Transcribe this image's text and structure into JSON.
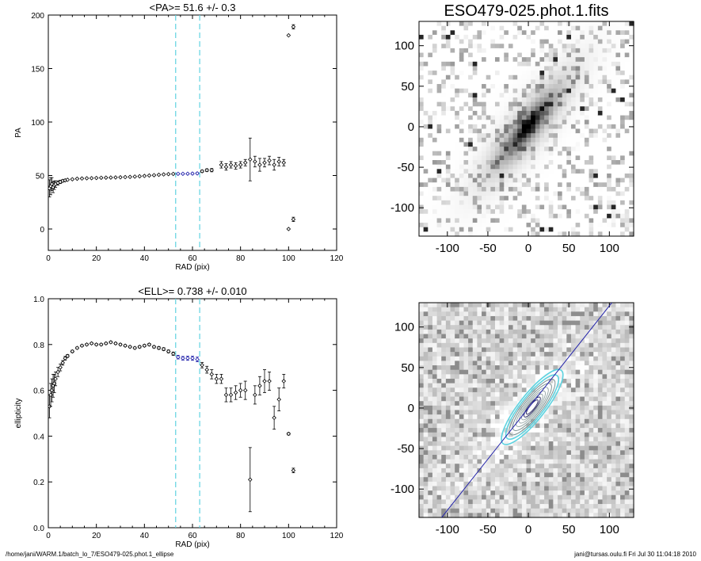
{
  "footer": {
    "left": "/home/jani/WARM.1/batch_lo_7/ESO479-025.phot.1_ellipse",
    "right": "jani@tursas.oulu.fi  Fri Jul 30 11:04:18 2010"
  },
  "chart_data": [
    {
      "id": "pa",
      "type": "scatter",
      "title": "<PA>=  51.6 +/-   0.3",
      "xlabel": "RAD (pix)",
      "ylabel": "PA",
      "xlim": [
        0,
        120
      ],
      "ylim": [
        -20,
        200
      ],
      "xticks": [
        0,
        20,
        40,
        60,
        80,
        100,
        120
      ],
      "yticks": [
        0,
        50,
        100,
        150,
        200
      ],
      "vlines": [
        53,
        63
      ],
      "vline_color": "#5fd3e0",
      "fit_color": "#1a1aa8",
      "fit_x_range": [
        53,
        63
      ],
      "points": [
        {
          "x": 0.5,
          "y": 38,
          "e": 8
        },
        {
          "x": 1,
          "y": 40,
          "e": 8
        },
        {
          "x": 1.5,
          "y": 42,
          "e": 6
        },
        {
          "x": 2,
          "y": 39,
          "e": 5
        },
        {
          "x": 2.5,
          "y": 41,
          "e": 4
        },
        {
          "x": 3,
          "y": 42,
          "e": 3
        },
        {
          "x": 4,
          "y": 43,
          "e": 2
        },
        {
          "x": 5,
          "y": 44,
          "e": 1.5
        },
        {
          "x": 6,
          "y": 45,
          "e": 1
        },
        {
          "x": 7,
          "y": 45.5,
          "e": 0.8
        },
        {
          "x": 8,
          "y": 46,
          "e": 0.6
        },
        {
          "x": 10,
          "y": 46.5,
          "e": 0.5
        },
        {
          "x": 12,
          "y": 47,
          "e": 0.5
        },
        {
          "x": 14,
          "y": 47.2,
          "e": 0.4
        },
        {
          "x": 16,
          "y": 47.4,
          "e": 0.4
        },
        {
          "x": 18,
          "y": 47.5,
          "e": 0.4
        },
        {
          "x": 20,
          "y": 47.7,
          "e": 0.4
        },
        {
          "x": 22,
          "y": 47.9,
          "e": 0.4
        },
        {
          "x": 24,
          "y": 48,
          "e": 0.4
        },
        {
          "x": 26,
          "y": 48.1,
          "e": 0.4
        },
        {
          "x": 28,
          "y": 48.2,
          "e": 0.4
        },
        {
          "x": 30,
          "y": 48.3,
          "e": 0.4
        },
        {
          "x": 32,
          "y": 48.5,
          "e": 0.4
        },
        {
          "x": 34,
          "y": 48.7,
          "e": 0.4
        },
        {
          "x": 36,
          "y": 49,
          "e": 0.4
        },
        {
          "x": 38,
          "y": 49.3,
          "e": 0.4
        },
        {
          "x": 40,
          "y": 49.6,
          "e": 0.5
        },
        {
          "x": 42,
          "y": 50,
          "e": 0.5
        },
        {
          "x": 44,
          "y": 50.3,
          "e": 0.5
        },
        {
          "x": 46,
          "y": 50.7,
          "e": 0.5
        },
        {
          "x": 48,
          "y": 51,
          "e": 0.5
        },
        {
          "x": 50,
          "y": 51.3,
          "e": 0.5
        },
        {
          "x": 52,
          "y": 51.5,
          "e": 0.5
        },
        {
          "x": 54,
          "y": 51.6,
          "e": 0.6
        },
        {
          "x": 56,
          "y": 51.6,
          "e": 0.6
        },
        {
          "x": 58,
          "y": 51.7,
          "e": 0.6
        },
        {
          "x": 60,
          "y": 51.8,
          "e": 0.7
        },
        {
          "x": 62,
          "y": 52,
          "e": 0.7
        },
        {
          "x": 64,
          "y": 54,
          "e": 1
        },
        {
          "x": 66,
          "y": 55,
          "e": 1.2
        },
        {
          "x": 68,
          "y": 55,
          "e": 1.5
        },
        {
          "x": 72,
          "y": 60,
          "e": 3
        },
        {
          "x": 74,
          "y": 58,
          "e": 3
        },
        {
          "x": 76,
          "y": 60,
          "e": 3
        },
        {
          "x": 78,
          "y": 59,
          "e": 3
        },
        {
          "x": 80,
          "y": 60,
          "e": 3
        },
        {
          "x": 82,
          "y": 62,
          "e": 3
        },
        {
          "x": 84,
          "y": 65,
          "e": 20
        },
        {
          "x": 86,
          "y": 63,
          "e": 5
        },
        {
          "x": 88,
          "y": 60,
          "e": 6
        },
        {
          "x": 90,
          "y": 62,
          "e": 4
        },
        {
          "x": 92,
          "y": 64,
          "e": 4
        },
        {
          "x": 94,
          "y": 60,
          "e": 5
        },
        {
          "x": 96,
          "y": 63,
          "e": 4
        },
        {
          "x": 98,
          "y": 62,
          "e": 3
        },
        {
          "x": 100,
          "y": 181,
          "e": 0
        },
        {
          "x": 100,
          "y": 0,
          "e": 0
        },
        {
          "x": 102,
          "y": 189,
          "e": 2
        },
        {
          "x": 102,
          "y": 9,
          "e": 2
        }
      ]
    },
    {
      "id": "ell",
      "type": "scatter",
      "title": "<ELL>= 0.738 +/-  0.010",
      "xlabel": "RAD (pix)",
      "ylabel": "ellipticity",
      "xlim": [
        0,
        120
      ],
      "ylim": [
        0,
        1
      ],
      "xticks": [
        0,
        20,
        40,
        60,
        80,
        100,
        120
      ],
      "yticks": [
        0.0,
        0.2,
        0.4,
        0.6,
        0.8,
        1.0
      ],
      "ytick_labels": [
        "0.0",
        "0.2",
        "0.4",
        "0.6",
        "0.8",
        "1.0"
      ],
      "vlines": [
        53,
        63
      ],
      "vline_color": "#5fd3e0",
      "fit_color": "#1a1aa8",
      "fit_x_range": [
        53,
        63
      ],
      "points": [
        {
          "x": 0.5,
          "y": 0.53,
          "e": 0.05
        },
        {
          "x": 1,
          "y": 0.58,
          "e": 0.05
        },
        {
          "x": 1.5,
          "y": 0.6,
          "e": 0.05
        },
        {
          "x": 2,
          "y": 0.62,
          "e": 0.05
        },
        {
          "x": 2.5,
          "y": 0.63,
          "e": 0.04
        },
        {
          "x": 3,
          "y": 0.65,
          "e": 0.03
        },
        {
          "x": 4,
          "y": 0.68,
          "e": 0.02
        },
        {
          "x": 5,
          "y": 0.7,
          "e": 0.015
        },
        {
          "x": 6,
          "y": 0.72,
          "e": 0.01
        },
        {
          "x": 7,
          "y": 0.74,
          "e": 0.008
        },
        {
          "x": 8,
          "y": 0.75,
          "e": 0.006
        },
        {
          "x": 10,
          "y": 0.77,
          "e": 0.005
        },
        {
          "x": 12,
          "y": 0.785,
          "e": 0.004
        },
        {
          "x": 14,
          "y": 0.795,
          "e": 0.004
        },
        {
          "x": 16,
          "y": 0.8,
          "e": 0.004
        },
        {
          "x": 18,
          "y": 0.805,
          "e": 0.004
        },
        {
          "x": 20,
          "y": 0.8,
          "e": 0.004
        },
        {
          "x": 22,
          "y": 0.8,
          "e": 0.004
        },
        {
          "x": 24,
          "y": 0.805,
          "e": 0.004
        },
        {
          "x": 26,
          "y": 0.81,
          "e": 0.004
        },
        {
          "x": 28,
          "y": 0.805,
          "e": 0.004
        },
        {
          "x": 30,
          "y": 0.8,
          "e": 0.004
        },
        {
          "x": 32,
          "y": 0.795,
          "e": 0.004
        },
        {
          "x": 34,
          "y": 0.79,
          "e": 0.004
        },
        {
          "x": 36,
          "y": 0.785,
          "e": 0.004
        },
        {
          "x": 38,
          "y": 0.79,
          "e": 0.005
        },
        {
          "x": 40,
          "y": 0.795,
          "e": 0.005
        },
        {
          "x": 42,
          "y": 0.8,
          "e": 0.005
        },
        {
          "x": 44,
          "y": 0.79,
          "e": 0.005
        },
        {
          "x": 46,
          "y": 0.785,
          "e": 0.006
        },
        {
          "x": 48,
          "y": 0.78,
          "e": 0.006
        },
        {
          "x": 50,
          "y": 0.77,
          "e": 0.006
        },
        {
          "x": 52,
          "y": 0.76,
          "e": 0.007
        },
        {
          "x": 54,
          "y": 0.745,
          "e": 0.008
        },
        {
          "x": 56,
          "y": 0.74,
          "e": 0.008
        },
        {
          "x": 58,
          "y": 0.74,
          "e": 0.009
        },
        {
          "x": 60,
          "y": 0.74,
          "e": 0.009
        },
        {
          "x": 62,
          "y": 0.735,
          "e": 0.01
        },
        {
          "x": 64,
          "y": 0.71,
          "e": 0.012
        },
        {
          "x": 66,
          "y": 0.69,
          "e": 0.015
        },
        {
          "x": 68,
          "y": 0.67,
          "e": 0.02
        },
        {
          "x": 70,
          "y": 0.65,
          "e": 0.02
        },
        {
          "x": 72,
          "y": 0.65,
          "e": 0.02
        },
        {
          "x": 74,
          "y": 0.58,
          "e": 0.03
        },
        {
          "x": 76,
          "y": 0.58,
          "e": 0.03
        },
        {
          "x": 78,
          "y": 0.59,
          "e": 0.03
        },
        {
          "x": 80,
          "y": 0.6,
          "e": 0.03
        },
        {
          "x": 82,
          "y": 0.6,
          "e": 0.04
        },
        {
          "x": 84,
          "y": 0.21,
          "e": 0.14
        },
        {
          "x": 86,
          "y": 0.58,
          "e": 0.04
        },
        {
          "x": 88,
          "y": 0.62,
          "e": 0.04
        },
        {
          "x": 90,
          "y": 0.64,
          "e": 0.05
        },
        {
          "x": 92,
          "y": 0.64,
          "e": 0.04
        },
        {
          "x": 94,
          "y": 0.48,
          "e": 0.05
        },
        {
          "x": 96,
          "y": 0.56,
          "e": 0.05
        },
        {
          "x": 98,
          "y": 0.64,
          "e": 0.03
        },
        {
          "x": 100,
          "y": 0.41,
          "e": 0.005
        },
        {
          "x": 102,
          "y": 0.25,
          "e": 0.01
        }
      ]
    },
    {
      "id": "img1",
      "type": "heatmap",
      "title": "ESO479-025.phot.1.fits",
      "xlim": [
        -135,
        130
      ],
      "ylim": [
        -135,
        130
      ],
      "xticks": [
        -100,
        -50,
        0,
        50,
        100
      ],
      "yticks": [
        -100,
        -50,
        0,
        50,
        100
      ],
      "galaxy": {
        "center": [
          0,
          0
        ],
        "pa_deg": 51.6,
        "major": 55,
        "ellipticity": 0.738
      },
      "colormap": "grayscale-inverted"
    },
    {
      "id": "img2",
      "type": "heatmap",
      "title": "",
      "xlim": [
        -135,
        130
      ],
      "ylim": [
        -135,
        130
      ],
      "xticks": [
        -100,
        -50,
        0,
        50,
        100
      ],
      "yticks": [
        -100,
        -50,
        0,
        50,
        100
      ],
      "galaxy": {
        "center": [
          0,
          0
        ],
        "pa_deg": 51.6,
        "major": 55,
        "ellipticity": 0.738
      },
      "pa_line_color": "#2222aa",
      "contour_colors": [
        "#5fd3e0",
        "#7a9090",
        "#9aaaaa",
        "#333366"
      ],
      "colormap": "grayscale"
    }
  ]
}
